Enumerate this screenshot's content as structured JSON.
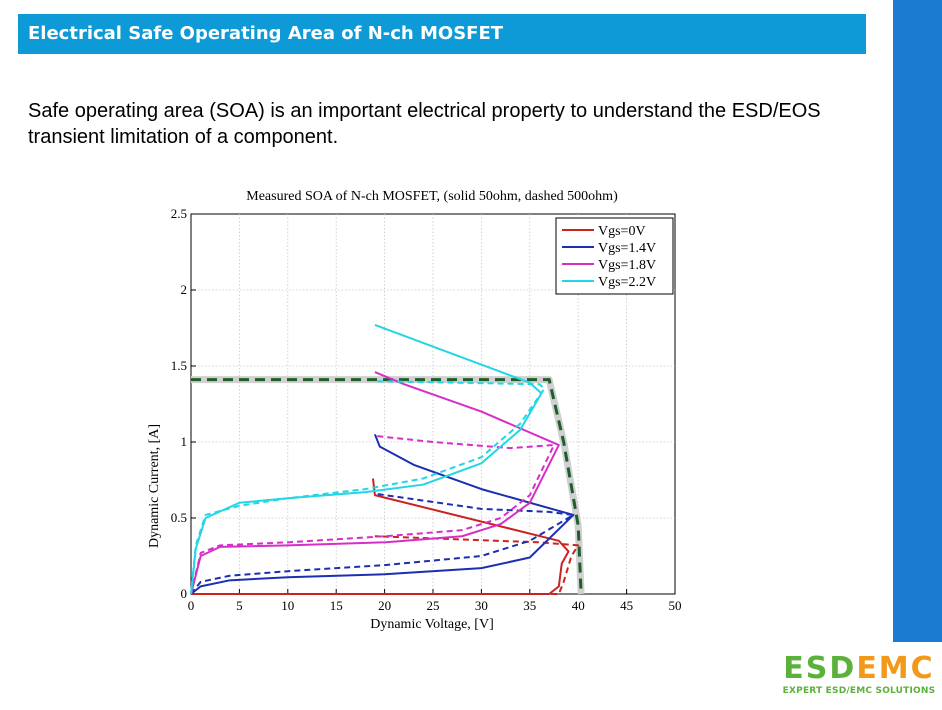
{
  "header": {
    "title": "Electrical Safe Operating Area of N-ch MOSFET"
  },
  "intro": {
    "text": "Safe operating area (SOA) is an important electrical property to understand the ESD/EOS transient limitation of a component."
  },
  "logo": {
    "left": "ESD",
    "right": "EMC",
    "tagline": "EXPERT ESD/EMC SOLUTIONS"
  },
  "chart_data": {
    "type": "line",
    "title": "Measured SOA of N-ch MOSFET, (solid 50ohm, dashed 500ohm)",
    "xlabel": "Dynamic Voltage, [V]",
    "ylabel": "Dynamic Current, [A]",
    "xlim": [
      0,
      50
    ],
    "ylim": [
      0,
      2.5
    ],
    "xticks": [
      "0",
      "5",
      "10",
      "15",
      "20",
      "25",
      "30",
      "35",
      "40",
      "45",
      "50"
    ],
    "yticks": [
      "0",
      "0.5",
      "1",
      "1.5",
      "2",
      "2.5"
    ],
    "grid": true,
    "legend_position": "top-right",
    "soa_boundary": {
      "color": "#1e5e2a",
      "style": "dashed",
      "points": [
        [
          0,
          1.41
        ],
        [
          37,
          1.41
        ],
        [
          38.5,
          1.0
        ],
        [
          40,
          0.45
        ],
        [
          40.3,
          0
        ]
      ]
    },
    "series": [
      {
        "name": "Vgs=0V",
        "color": "#cc2222",
        "dash": false,
        "x": [
          0,
          37,
          38,
          38.3,
          39,
          38,
          19,
          18.8
        ],
        "y": [
          0,
          0,
          0.05,
          0.2,
          0.28,
          0.35,
          0.65,
          0.76
        ]
      },
      {
        "name": "Vgs=0V",
        "color": "#cc2222",
        "dash": true,
        "x": [
          0,
          38,
          38.5,
          39.3,
          40,
          36,
          19
        ],
        "y": [
          0,
          0,
          0.08,
          0.25,
          0.32,
          0.34,
          0.38
        ]
      },
      {
        "name": "Vgs=1.4V",
        "color": "#1c2fb0",
        "dash": false,
        "x": [
          0,
          1,
          4,
          10,
          20,
          30,
          35,
          39.5,
          30,
          23,
          19.5,
          19
        ],
        "y": [
          0,
          0.05,
          0.09,
          0.11,
          0.13,
          0.17,
          0.24,
          0.52,
          0.69,
          0.85,
          0.97,
          1.05
        ]
      },
      {
        "name": "Vgs=1.4V",
        "color": "#1c2fb0",
        "dash": true,
        "x": [
          0,
          1,
          4,
          10,
          20,
          30,
          35,
          39.5,
          37,
          30,
          19
        ],
        "y": [
          0,
          0.08,
          0.12,
          0.15,
          0.19,
          0.25,
          0.35,
          0.52,
          0.54,
          0.56,
          0.66
        ]
      },
      {
        "name": "Vgs=1.8V",
        "color": "#d62fc8",
        "dash": false,
        "x": [
          0,
          1,
          3,
          10,
          20,
          28,
          32,
          35,
          38,
          30,
          22,
          19
        ],
        "y": [
          0,
          0.25,
          0.31,
          0.32,
          0.34,
          0.38,
          0.46,
          0.6,
          0.98,
          1.2,
          1.38,
          1.46
        ]
      },
      {
        "name": "Vgs=1.8V",
        "color": "#d62fc8",
        "dash": true,
        "x": [
          0,
          1,
          3,
          10,
          20,
          28,
          32,
          35,
          37.5,
          33,
          25,
          19
        ],
        "y": [
          0,
          0.27,
          0.32,
          0.34,
          0.38,
          0.42,
          0.5,
          0.65,
          0.98,
          0.96,
          1.0,
          1.04
        ]
      },
      {
        "name": "Vgs=2.2V",
        "color": "#22d6e6",
        "dash": false,
        "x": [
          0,
          0.5,
          1.5,
          5,
          10,
          18,
          24,
          30,
          34,
          36.2,
          35,
          19
        ],
        "y": [
          0,
          0.3,
          0.5,
          0.6,
          0.63,
          0.67,
          0.72,
          0.86,
          1.08,
          1.32,
          1.39,
          1.77
        ]
      },
      {
        "name": "Vgs=2.2V",
        "color": "#22d6e6",
        "dash": true,
        "x": [
          0,
          0.5,
          1.5,
          5,
          10,
          18,
          24,
          30,
          34,
          36.5,
          36,
          19
        ],
        "y": [
          0,
          0.32,
          0.52,
          0.58,
          0.63,
          0.69,
          0.76,
          0.9,
          1.12,
          1.35,
          1.38,
          1.4
        ]
      }
    ]
  }
}
